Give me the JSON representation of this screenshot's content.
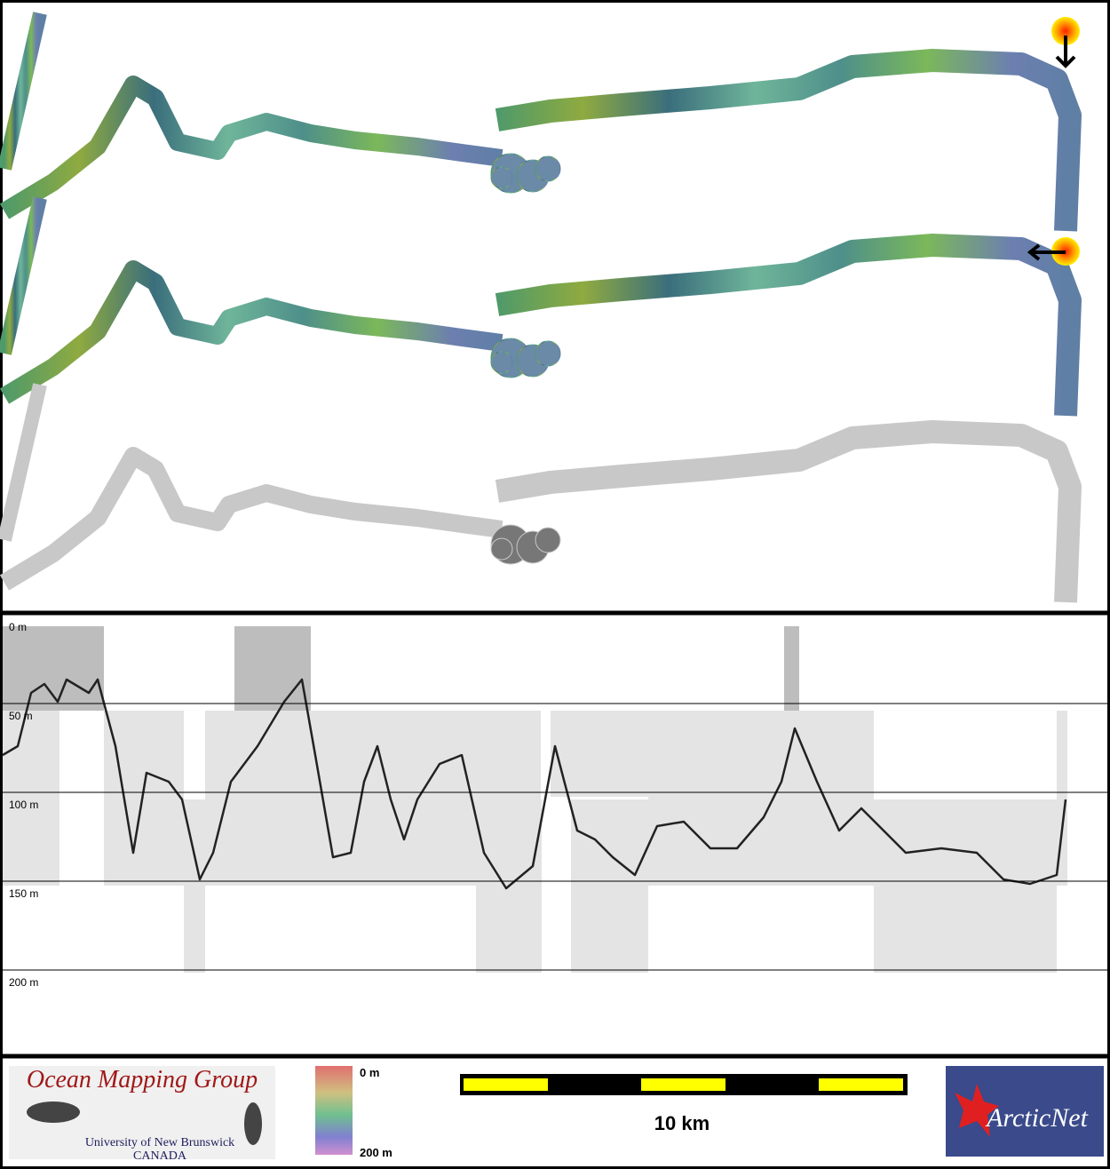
{
  "profile": {
    "depth_labels": [
      "0 m",
      "50 m",
      "100 m",
      "150 m",
      "200 m"
    ]
  },
  "legend": {
    "colorbar_top": "0 m",
    "colorbar_bottom": "200 m",
    "scale": "10 km"
  },
  "logos": {
    "omg_title": "Ocean Mapping Group",
    "omg_university": "University of New Brunswick",
    "omg_country": "CANADA",
    "arcticnet": "ArcticNet"
  }
}
